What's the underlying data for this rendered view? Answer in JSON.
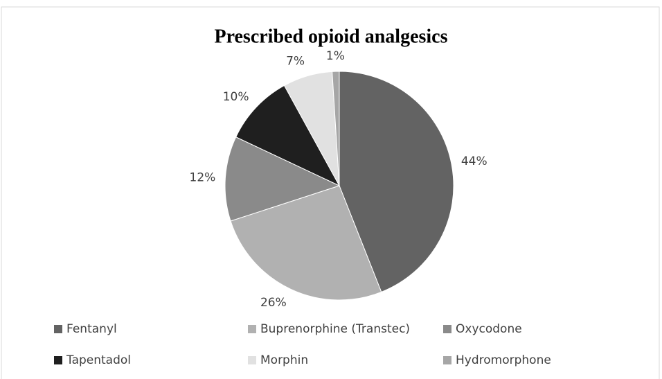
{
  "chart_data": {
    "type": "pie",
    "title": "Prescribed opioid analgesics",
    "categories": [
      "Fentanyl",
      "Buprenorphine (Transtec)",
      "Oxycodone",
      "Tapentadol",
      "Morphin",
      "Hydromorphone"
    ],
    "values": [
      44,
      26,
      12,
      10,
      7,
      1
    ],
    "value_labels": [
      "44%",
      "26%",
      "12%",
      "10%",
      "7%",
      "1%"
    ],
    "colors": [
      "#636363",
      "#b1b1b1",
      "#8a8a8a",
      "#1f1f1f",
      "#e1e1e1",
      "#a6a6a6"
    ],
    "legend": "bottom"
  }
}
